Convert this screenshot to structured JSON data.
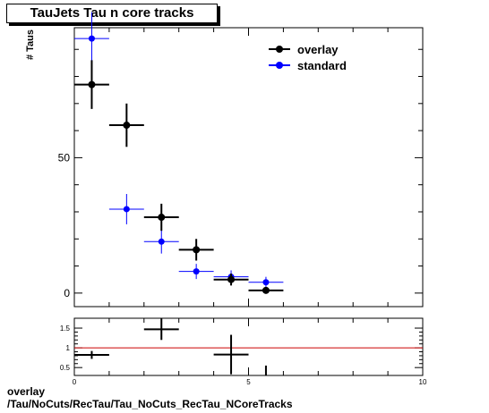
{
  "title": "TauJets Tau n core tracks",
  "footer": {
    "line1": "overlay",
    "line2": "/Tau/NoCuts/RecTau/Tau_NoCuts_RecTau_NCoreTracks"
  },
  "colors": {
    "overlay": "#000000",
    "standard": "#0000ff",
    "ratio_line": "#cc0000"
  },
  "chart_data": [
    {
      "type": "scatter",
      "panel": "main",
      "ylabel": "# Taus",
      "xlim": [
        0,
        10
      ],
      "ylim": [
        -5,
        98
      ],
      "y_ticks": [
        0,
        50
      ],
      "legend_position": "top-right",
      "series": [
        {
          "name": "overlay",
          "x": [
            0.5,
            1.5,
            2.5,
            3.5,
            4.5,
            5.5
          ],
          "y": [
            77,
            62,
            28,
            16,
            5,
            1
          ],
          "yerr": [
            9,
            8,
            5,
            4,
            2.2,
            1
          ],
          "xerr": 0.5
        },
        {
          "name": "standard",
          "x": [
            0.5,
            1.5,
            2.5,
            3.5,
            4.5,
            5.5
          ],
          "y": [
            94,
            31,
            19,
            8,
            6,
            4
          ],
          "yerr": [
            9.7,
            5.6,
            4.4,
            2.8,
            2.4,
            2
          ],
          "xerr": 0.5
        }
      ]
    },
    {
      "type": "scatter",
      "panel": "ratio",
      "xlim": [
        0,
        10
      ],
      "ylim": [
        0.3,
        1.75
      ],
      "x_ticks": [
        0,
        5,
        10
      ],
      "y_ticks": [
        0.5,
        1,
        1.5
      ],
      "y_tick_labels": [
        "0.5",
        "1",
        "1.5"
      ],
      "reference_line": 1,
      "series": [
        {
          "name": "ratio",
          "x": [
            0.5,
            2.5,
            4.5,
            5.5
          ],
          "y": [
            0.82,
            1.47,
            0.83,
            0.25
          ],
          "yerr": [
            0.1,
            0.27,
            0.5,
            0.3
          ],
          "xerr": 0.5
        }
      ]
    }
  ]
}
